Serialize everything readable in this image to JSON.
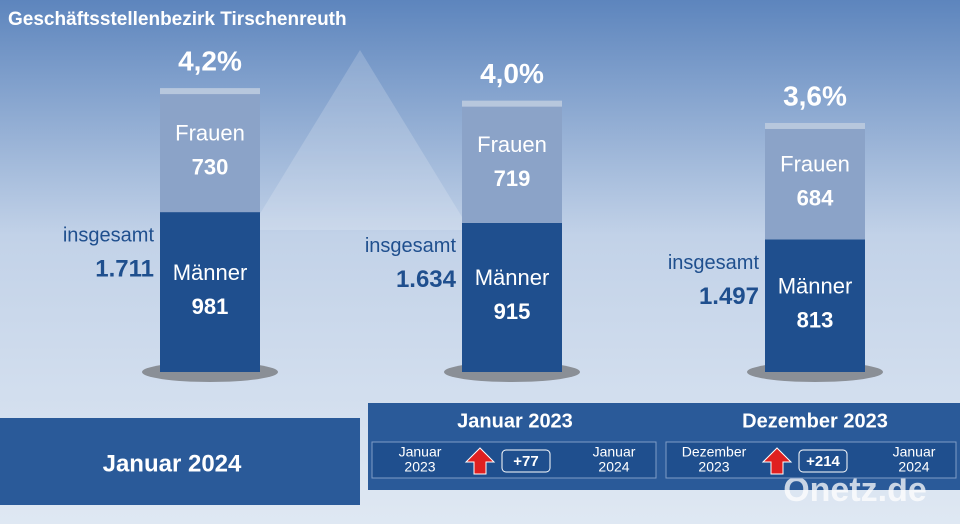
{
  "chart_data": {
    "type": "bar",
    "stacked": true,
    "title": "Geschäftsstellenbezirk Tirschenreuth",
    "categories": [
      "Januar 2024",
      "Januar 2023",
      "Dezember 2023"
    ],
    "series": [
      {
        "name": "Männer",
        "color": "#1f4f8e",
        "values": [
          981,
          915,
          813
        ]
      },
      {
        "name": "Frauen",
        "color": "#8ba3c8",
        "values": [
          730,
          719,
          684
        ]
      }
    ],
    "totals": {
      "name": "insgesamt",
      "values": [
        1711,
        1634,
        1497
      ],
      "value_labels": [
        "1.711",
        "1.634",
        "1.497"
      ]
    },
    "rates": {
      "values": [
        4.2,
        4.0,
        3.6
      ],
      "value_labels": [
        "4,2%",
        "4,0%",
        "3,6%"
      ]
    },
    "comparisons": [
      {
        "from": [
          "Januar",
          "2023"
        ],
        "change": {
          "value": 77,
          "label": "+77"
        },
        "to": [
          "Januar",
          "2024"
        ]
      },
      {
        "from": [
          "Dezember",
          "2023"
        ],
        "change": {
          "value": 214,
          "label": "+214"
        },
        "to": [
          "Januar",
          "2024"
        ]
      }
    ],
    "source": "Onetz.de"
  }
}
